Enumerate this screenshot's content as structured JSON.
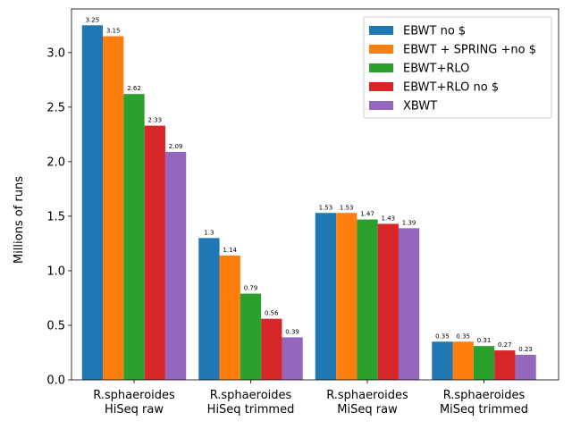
{
  "chart_data": {
    "type": "bar",
    "title": "",
    "xlabel": "",
    "ylabel": "Millions of runs",
    "ylim": [
      0,
      3.4
    ],
    "yticks": [
      "0.0",
      "0.5",
      "1.0",
      "1.5",
      "2.0",
      "2.5",
      "3.0"
    ],
    "ytick_values": [
      0,
      0.5,
      1.0,
      1.5,
      2.0,
      2.5,
      3.0
    ],
    "categories": [
      [
        "R.sphaeroides",
        "HiSeq raw"
      ],
      [
        "R.sphaeroides",
        "HiSeq trimmed"
      ],
      [
        "R.sphaeroides",
        "MiSeq raw"
      ],
      [
        "R.sphaeroides",
        "MiSeq trimmed"
      ]
    ],
    "series": [
      {
        "name": "EBWT no $",
        "color": "#1f77b4",
        "values": [
          3.25,
          1.3,
          1.53,
          0.35
        ],
        "labels": [
          "3.25",
          "1.3",
          "1.53",
          "0.35"
        ]
      },
      {
        "name": "EBWT + SPRING +no $",
        "color": "#ff7f0e",
        "values": [
          3.15,
          1.14,
          1.53,
          0.35
        ],
        "labels": [
          "3.15",
          "1.14",
          "1.53",
          "0.35"
        ]
      },
      {
        "name": "EBWT+RLO",
        "color": "#2ca02c",
        "values": [
          2.62,
          0.79,
          1.47,
          0.31
        ],
        "labels": [
          "2.62",
          "0.79",
          "1.47",
          "0.31"
        ]
      },
      {
        "name": "EBWT+RLO no $",
        "color": "#d62728",
        "values": [
          2.33,
          0.56,
          1.43,
          0.27
        ],
        "labels": [
          "2.33",
          "0.56",
          "1.43",
          "0.27"
        ]
      },
      {
        "name": "XBWT",
        "color": "#9467bd",
        "values": [
          2.09,
          0.39,
          1.39,
          0.23
        ],
        "labels": [
          "2.09",
          "0.39",
          "1.39",
          "0.23"
        ]
      }
    ],
    "legend_position": "top-right",
    "grid": false
  }
}
